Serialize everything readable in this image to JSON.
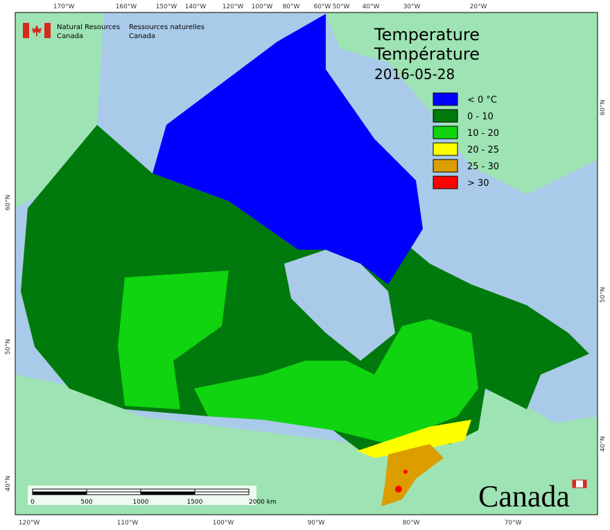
{
  "header": {
    "agency_en": [
      "Natural Resources",
      "Canada"
    ],
    "agency_fr": [
      "Ressources naturelles",
      "Canada"
    ]
  },
  "title": [
    "Temperature",
    "Température",
    "2016-05-28"
  ],
  "legend": [
    {
      "label": "< 0 °C",
      "color": "#0000ff"
    },
    {
      "label": "0 - 10",
      "color": "#007a0c"
    },
    {
      "label": "10 - 20",
      "color": "#10d410"
    },
    {
      "label": "20 - 25",
      "color": "#ffff00"
    },
    {
      "label": "25 - 30",
      "color": "#dc9d00"
    },
    {
      "label": "> 30",
      "color": "#ff0000"
    }
  ],
  "graticule": {
    "top": [
      "170°W",
      "160°W",
      "150°W",
      "140°W",
      "120°W",
      "100°W",
      "80°W",
      "60°W",
      "50°W",
      "40°W",
      "30°W",
      "20°W"
    ],
    "bottom": [
      "120°W",
      "110°W",
      "100°W",
      "90°W",
      "80°W",
      "70°W"
    ],
    "left": [
      "60°N",
      "50°N",
      "40°N"
    ],
    "right": [
      "60°N",
      "50°N",
      "40°N"
    ]
  },
  "scale_bar": [
    "0",
    "500",
    "1000",
    "1500",
    "2000 km"
  ],
  "wordmark": "Canada"
}
